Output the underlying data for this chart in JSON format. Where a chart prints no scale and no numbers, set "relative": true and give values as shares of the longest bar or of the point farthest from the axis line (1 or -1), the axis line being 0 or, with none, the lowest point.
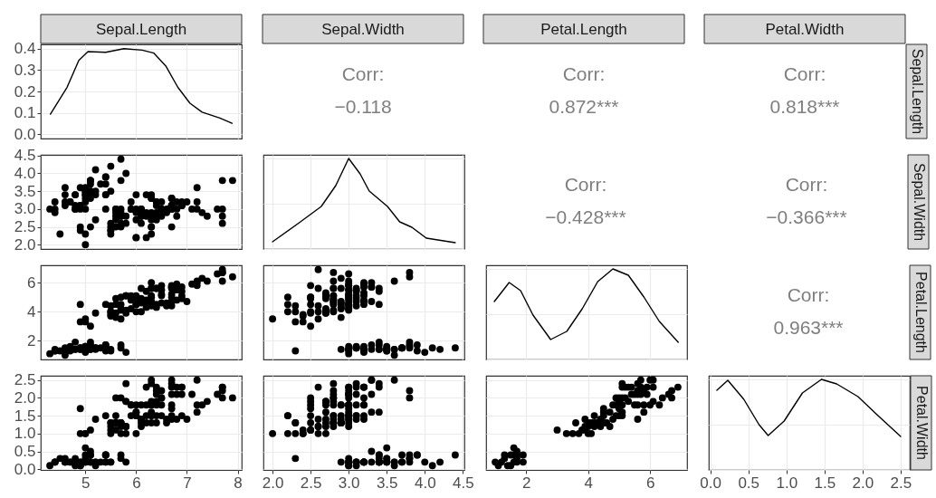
{
  "chart_data": [
    {
      "type": "line",
      "title": "Sepal.Length",
      "color": "#000000",
      "x": [
        4.31,
        4.64,
        4.87,
        5.05,
        5.4,
        5.76,
        6.12,
        6.35,
        6.59,
        6.82,
        7.06,
        7.3,
        7.65,
        7.89
      ],
      "values": [
        0.094,
        0.22,
        0.345,
        0.386,
        0.383,
        0.4,
        0.393,
        0.379,
        0.317,
        0.22,
        0.145,
        0.103,
        0.076,
        0.051
      ],
      "xlim": [
        4.12,
        8.08
      ],
      "xticks": [
        5,
        6,
        7,
        8
      ],
      "ylim": [
        -0.02,
        0.42
      ],
      "yticks": [
        {
          "value": 0,
          "label": "0.0"
        },
        0.1,
        0.2,
        0.3,
        0.4
      ],
      "grid": true,
      "tick_labels": "y"
    },
    {
      "type": "other",
      "title": "Sepal.Width",
      "annotations": [
        "Corr:",
        "−0.118"
      ]
    },
    {
      "type": "other",
      "title": "Petal.Length",
      "annotations": [
        "Corr:",
        "0.872***"
      ]
    },
    {
      "type": "other",
      "title": "Petal.Width",
      "ylabel": "Sepal.Length",
      "annotations": [
        "Corr:",
        "0.818***"
      ]
    },
    {
      "type": "scatter",
      "color": "#000000",
      "marker": "circle",
      "grid": true,
      "tick_labels": "y",
      "xlim": [
        4.12,
        8.08
      ],
      "xticks": [
        5,
        6,
        7,
        8
      ],
      "ylim": [
        1.88,
        4.52
      ],
      "yticks": [
        {
          "value": 2,
          "label": "2.0"
        },
        2.5,
        {
          "value": 3,
          "label": "3.0"
        },
        3.5,
        {
          "value": 4,
          "label": "4.0"
        },
        4.5
      ],
      "x": [
        5.1,
        4.9,
        4.7,
        4.6,
        5.0,
        5.4,
        4.6,
        5.0,
        4.4,
        4.9,
        5.4,
        4.8,
        4.8,
        4.3,
        5.8,
        5.7,
        5.4,
        5.1,
        5.7,
        5.1,
        5.4,
        5.1,
        4.6,
        5.1,
        4.8,
        5.0,
        5.0,
        5.2,
        5.2,
        4.7,
        4.8,
        5.4,
        5.2,
        5.5,
        4.9,
        5.0,
        5.5,
        4.9,
        4.4,
        5.1,
        5.0,
        4.5,
        4.4,
        5.0,
        5.1,
        4.8,
        5.1,
        4.6,
        5.3,
        5.0,
        7.0,
        6.4,
        6.9,
        5.5,
        6.5,
        5.7,
        6.3,
        4.9,
        6.6,
        5.2,
        5.0,
        5.9,
        6.0,
        6.1,
        5.6,
        6.7,
        5.6,
        6.2,
        5.6,
        5.9,
        6.1,
        6.3,
        6.1,
        6.4,
        6.6,
        6.8,
        6.7,
        6.0,
        5.7,
        5.5,
        5.5,
        6.0,
        5.4,
        6.0,
        6.7,
        6.3,
        5.6,
        5.5,
        5.5,
        6.1,
        5.8,
        5.0,
        5.6,
        5.7,
        5.7,
        6.2,
        5.1,
        5.7,
        6.3,
        7.1,
        6.3,
        6.5,
        7.6,
        4.9,
        7.3,
        6.7,
        7.2,
        6.5,
        6.4,
        6.8,
        5.7,
        5.8,
        6.4,
        6.5,
        7.7,
        7.7,
        6.0,
        6.9,
        5.6,
        7.7,
        6.3,
        6.7,
        7.2,
        6.2,
        6.1,
        6.4,
        7.2,
        7.4,
        7.9,
        6.3,
        6.1,
        7.7,
        6.3,
        6.4,
        6.0,
        6.9,
        6.7,
        6.9,
        6.8,
        6.7,
        6.7,
        6.3,
        6.5,
        6.2,
        5.9
      ],
      "values": [
        3.5,
        3.0,
        3.2,
        3.1,
        3.6,
        3.9,
        3.4,
        3.4,
        2.9,
        3.1,
        3.7,
        3.4,
        3.0,
        3.0,
        4.0,
        4.4,
        3.9,
        3.5,
        3.8,
        3.8,
        3.4,
        3.7,
        3.6,
        3.3,
        3.4,
        3.0,
        3.4,
        3.5,
        3.4,
        3.2,
        3.1,
        3.4,
        4.1,
        4.2,
        3.1,
        3.2,
        3.5,
        3.6,
        3.0,
        3.4,
        3.5,
        2.3,
        3.2,
        3.5,
        3.8,
        3.0,
        3.8,
        3.2,
        3.7,
        3.3,
        3.2,
        3.2,
        3.1,
        2.3,
        2.8,
        2.8,
        3.3,
        2.4,
        2.9,
        2.7,
        2.0,
        3.0,
        2.2,
        2.9,
        2.9,
        3.1,
        3.0,
        2.2,
        2.5,
        3.2,
        2.8,
        2.5,
        2.8,
        2.9,
        3.0,
        2.8,
        3.0,
        2.9,
        2.6,
        2.4,
        2.4,
        2.7,
        3.0,
        3.4,
        3.1,
        2.3,
        3.0,
        2.5,
        2.6,
        3.0,
        2.6,
        2.3,
        2.7,
        3.0,
        2.9,
        2.9,
        2.5,
        2.8,
        3.3,
        3.0,
        2.9,
        3.0,
        3.0,
        2.5,
        2.9,
        2.5,
        3.6,
        3.2,
        2.7,
        3.0,
        2.5,
        2.8,
        3.2,
        3.0,
        3.8,
        2.6,
        2.2,
        3.2,
        2.8,
        2.8,
        2.7,
        3.3,
        3.2,
        2.8,
        3.0,
        2.8,
        3.0,
        2.8,
        3.8,
        2.8,
        2.6,
        3.0,
        3.4,
        3.1,
        3.0,
        3.1,
        3.1,
        3.1,
        3.2,
        3.3,
        3.0,
        2.5,
        3.0,
        3.4,
        3.0
      ]
    },
    {
      "type": "line",
      "relative": true,
      "color": "#000000",
      "grid": true,
      "tick_labels": false,
      "xlim": [
        1.88,
        4.52
      ],
      "xticks": [
        2,
        2.5,
        3,
        3.5,
        4,
        4.5
      ],
      "x": [
        2.0,
        2.35,
        2.64,
        2.83,
        3.0,
        3.15,
        3.27,
        3.51,
        3.67,
        3.83,
        4.02,
        4.4
      ],
      "values": [
        0.08,
        0.29,
        0.47,
        0.7,
        1,
        0.83,
        0.64,
        0.47,
        0.3,
        0.24,
        0.12,
        0.07
      ]
    },
    {
      "type": "other",
      "annotations": [
        "Corr:",
        "−0.428***"
      ]
    },
    {
      "type": "other",
      "ylabel": "Sepal.Width",
      "annotations": [
        "Corr:",
        "−0.366***"
      ]
    },
    {
      "type": "scatter",
      "color": "#000000",
      "marker": "circle",
      "grid": true,
      "tick_labels": "y",
      "xlim": [
        4.12,
        8.08
      ],
      "xticks": [
        5,
        6,
        7,
        8
      ],
      "ylim": [
        0.705,
        7.195
      ],
      "yticks": [
        2,
        4,
        6
      ],
      "x": [
        5.1,
        4.9,
        4.7,
        4.6,
        5.4,
        4.6,
        4.4,
        4.9,
        4.8,
        4.3,
        5.8,
        5.7,
        5.4,
        5.1,
        5.7,
        5.4,
        4.6,
        5.1,
        4.8,
        5.0,
        5.0,
        5.2,
        5.2,
        4.7,
        5.2,
        5.5,
        4.9,
        5.0,
        5.5,
        4.9,
        4.4,
        4.5,
        4.4,
        5.0,
        5.1,
        4.8,
        5.3,
        7.0,
        6.4,
        6.9,
        5.5,
        6.5,
        5.7,
        6.3,
        4.9,
        6.6,
        5.2,
        5.0,
        5.9,
        6.0,
        5.6,
        6.7,
        5.6,
        5.8,
        6.2,
        5.6,
        5.9,
        6.1,
        6.4,
        6.6,
        6.8,
        6.7,
        6.0,
        5.7,
        5.5,
        5.5,
        5.8,
        6.0,
        5.4,
        6.0,
        6.7,
        6.3,
        5.5,
        5.5,
        6.1,
        5.0,
        5.7,
        6.2,
        5.1,
        5.7,
        6.3,
        5.8,
        7.1,
        6.3,
        6.5,
        7.6,
        4.9,
        7.3,
        6.7,
        7.2,
        6.5,
        6.8,
        5.7,
        5.8,
        6.5,
        7.7,
        7.7,
        6.9,
        5.6,
        7.7,
        6.7,
        7.2,
        6.2,
        6.1,
        6.4,
        7.2,
        7.4,
        7.9,
        6.4,
        6.3,
        6.1,
        7.7,
        6.3,
        6.0,
        6.9,
        6.7,
        6.9,
        5.8,
        6.8,
        6.7,
        6.7,
        6.3,
        6.5,
        6.2,
        5.9
      ],
      "values": [
        1.4,
        1.4,
        1.3,
        1.5,
        1.7,
        1.4,
        1.4,
        1.5,
        1.4,
        1.1,
        1.2,
        1.5,
        1.3,
        1.4,
        1.7,
        1.7,
        1.0,
        1.7,
        1.9,
        1.6,
        1.6,
        1.5,
        1.4,
        1.6,
        1.5,
        1.4,
        1.5,
        1.2,
        1.3,
        1.4,
        1.3,
        1.3,
        1.3,
        1.6,
        1.9,
        1.4,
        1.5,
        4.7,
        4.5,
        4.9,
        4.0,
        4.6,
        4.5,
        4.7,
        3.3,
        4.6,
        3.9,
        3.5,
        4.2,
        4.0,
        3.6,
        4.4,
        4.5,
        4.1,
        4.5,
        3.9,
        4.8,
        4.0,
        4.3,
        4.4,
        4.8,
        5.0,
        4.5,
        3.5,
        3.8,
        3.7,
        3.9,
        5.1,
        4.5,
        4.5,
        4.7,
        4.4,
        4.0,
        4.4,
        4.6,
        3.3,
        4.2,
        4.3,
        3.0,
        4.1,
        6.0,
        5.1,
        5.9,
        5.6,
        5.8,
        6.6,
        4.5,
        6.3,
        5.8,
        6.1,
        5.1,
        5.5,
        5.0,
        5.1,
        5.5,
        6.7,
        6.9,
        5.7,
        4.9,
        6.7,
        5.7,
        6.0,
        4.8,
        4.9,
        5.6,
        5.8,
        6.1,
        6.4,
        5.6,
        5.1,
        5.6,
        6.1,
        5.6,
        4.8,
        5.4,
        5.6,
        5.1,
        5.1,
        5.9,
        5.7,
        5.2,
        5.0,
        5.2,
        5.4,
        5.1
      ]
    },
    {
      "type": "scatter",
      "color": "#000000",
      "marker": "circle",
      "grid": true,
      "tick_labels": false,
      "xlim": [
        1.88,
        4.52
      ],
      "xticks": [
        2,
        2.5,
        3,
        3.5,
        4,
        4.5
      ],
      "ylim": [
        0.705,
        7.195
      ],
      "yticks": [
        2,
        4,
        6
      ],
      "x": [
        3.5,
        3.0,
        3.2,
        3.1,
        3.6,
        3.9,
        3.4,
        2.9,
        3.1,
        3.7,
        3.0,
        3.0,
        4.0,
        4.4,
        3.9,
        3.5,
        3.8,
        3.8,
        3.4,
        3.7,
        3.6,
        3.3,
        3.4,
        3.0,
        3.5,
        3.4,
        3.2,
        3.1,
        4.1,
        4.2,
        3.1,
        3.2,
        3.5,
        3.6,
        3.0,
        3.5,
        2.3,
        3.2,
        3.5,
        3.8,
        3.0,
        3.8,
        3.2,
        3.7,
        3.3,
        3.2,
        3.2,
        3.1,
        2.3,
        2.8,
        2.8,
        3.3,
        2.4,
        2.9,
        2.7,
        2.0,
        3.0,
        2.2,
        2.9,
        2.9,
        3.1,
        3.0,
        2.7,
        2.2,
        2.5,
        3.2,
        2.8,
        2.5,
        2.8,
        2.9,
        3.0,
        2.8,
        3.0,
        2.9,
        2.6,
        2.4,
        2.4,
        2.7,
        2.7,
        3.0,
        3.4,
        3.1,
        2.3,
        3.0,
        2.5,
        2.6,
        3.0,
        2.6,
        2.3,
        2.7,
        3.0,
        2.9,
        2.9,
        2.5,
        2.8,
        3.3,
        2.7,
        3.0,
        2.9,
        3.0,
        3.0,
        2.5,
        2.9,
        2.5,
        3.6,
        3.2,
        2.7,
        3.0,
        2.5,
        2.8,
        3.2,
        3.0,
        3.8,
        2.6,
        2.2,
        3.2,
        2.8,
        2.8,
        2.7,
        3.3,
        3.2,
        2.8,
        3.0,
        2.8,
        3.0,
        2.8,
        3.8,
        2.8,
        2.8,
        2.6,
        3.0,
        3.4,
        3.1,
        3.0,
        3.1,
        3.1,
        3.1,
        2.7,
        3.2,
        3.3,
        3.0,
        2.5,
        3.0,
        3.4,
        3.0
      ],
      "values": [
        1.4,
        1.4,
        1.3,
        1.5,
        1.4,
        1.7,
        1.4,
        1.4,
        1.5,
        1.5,
        1.4,
        1.1,
        1.2,
        1.5,
        1.3,
        1.4,
        1.7,
        1.5,
        1.7,
        1.5,
        1.0,
        1.7,
        1.9,
        1.6,
        1.5,
        1.4,
        1.6,
        1.6,
        1.5,
        1.4,
        1.5,
        1.2,
        1.3,
        1.4,
        1.3,
        1.3,
        1.3,
        1.3,
        1.6,
        1.9,
        1.4,
        1.6,
        1.4,
        1.5,
        1.4,
        4.7,
        4.5,
        4.9,
        4.0,
        4.6,
        4.5,
        4.7,
        3.3,
        4.6,
        3.9,
        3.5,
        4.2,
        4.0,
        4.7,
        3.6,
        4.4,
        4.5,
        4.1,
        4.5,
        3.9,
        4.8,
        4.0,
        4.9,
        4.7,
        4.3,
        4.4,
        4.8,
        5.0,
        4.5,
        3.5,
        3.8,
        3.7,
        3.9,
        5.1,
        4.5,
        4.5,
        4.7,
        4.4,
        4.1,
        4.0,
        4.4,
        4.6,
        4.0,
        3.3,
        4.2,
        4.2,
        4.2,
        4.3,
        3.0,
        4.1,
        6.0,
        5.1,
        5.9,
        5.6,
        5.8,
        6.6,
        4.5,
        6.3,
        5.8,
        6.1,
        5.1,
        5.3,
        5.5,
        5.0,
        5.1,
        5.3,
        5.5,
        6.7,
        6.9,
        5.0,
        5.7,
        4.9,
        6.7,
        4.9,
        5.7,
        6.0,
        4.8,
        4.9,
        5.6,
        5.8,
        6.1,
        6.4,
        5.6,
        5.1,
        5.6,
        6.1,
        5.6,
        5.5,
        4.8,
        5.4,
        5.6,
        5.1,
        5.1,
        5.9,
        5.7,
        5.2,
        5.0,
        5.2,
        5.4,
        5.1
      ]
    },
    {
      "type": "line",
      "relative": true,
      "color": "#000000",
      "grid": true,
      "tick_labels": false,
      "xlim": [
        0.705,
        7.195
      ],
      "xticks": [
        2,
        4,
        6
      ],
      "x": [
        0.97,
        1.45,
        1.82,
        2.22,
        2.79,
        3.31,
        3.81,
        4.31,
        4.8,
        5.3,
        5.8,
        6.3,
        6.91
      ],
      "values": [
        0.64,
        0.85,
        0.76,
        0.49,
        0.22,
        0.31,
        0.56,
        0.86,
        1,
        0.93,
        0.69,
        0.42,
        0.19
      ]
    },
    {
      "type": "other",
      "ylabel": "Petal.Length",
      "annotations": [
        "Corr:",
        "0.963***"
      ]
    },
    {
      "type": "scatter",
      "color": "#000000",
      "marker": "circle",
      "grid": true,
      "xlim": [
        4.12,
        8.08
      ],
      "xticks": [
        5,
        6,
        7,
        8
      ],
      "ylim": [
        -0.02,
        2.62
      ],
      "yticks": [
        {
          "value": 0,
          "label": "0.0"
        },
        0.5,
        {
          "value": 1,
          "label": "1.0"
        },
        1.5,
        {
          "value": 2,
          "label": "2.0"
        },
        2.5
      ],
      "x": [
        5.1,
        4.9,
        4.7,
        4.6,
        5.4,
        4.6,
        4.4,
        4.9,
        5.4,
        4.8,
        4.8,
        4.3,
        5.8,
        5.7,
        5.4,
        5.7,
        5.4,
        5.1,
        4.6,
        5.1,
        5.0,
        5.0,
        5.2,
        5.2,
        4.7,
        5.4,
        5.2,
        5.5,
        4.9,
        5.0,
        5.5,
        4.9,
        4.4,
        5.1,
        5.0,
        4.5,
        4.4,
        5.0,
        5.1,
        4.8,
        5.1,
        4.6,
        5.3,
        5.0,
        7.0,
        6.4,
        6.9,
        5.5,
        6.5,
        5.7,
        6.3,
        4.9,
        6.6,
        5.2,
        5.0,
        5.9,
        6.0,
        6.1,
        5.6,
        6.7,
        5.6,
        5.8,
        6.2,
        5.6,
        5.9,
        6.1,
        6.3,
        6.1,
        6.4,
        6.6,
        6.8,
        6.7,
        6.0,
        5.7,
        5.5,
        5.5,
        5.8,
        6.0,
        5.4,
        6.0,
        6.7,
        6.3,
        5.6,
        5.5,
        5.5,
        6.1,
        5.8,
        5.0,
        5.6,
        5.7,
        5.7,
        6.2,
        5.1,
        5.7,
        6.3,
        5.8,
        7.1,
        6.3,
        6.5,
        7.6,
        4.9,
        7.3,
        6.7,
        7.2,
        6.5,
        6.4,
        6.8,
        5.7,
        5.8,
        6.4,
        6.5,
        7.7,
        7.7,
        6.0,
        6.9,
        5.6,
        7.7,
        6.3,
        6.7,
        7.2,
        6.2,
        6.1,
        6.4,
        7.2,
        7.4,
        7.9,
        6.4,
        6.3,
        7.7,
        6.3,
        6.4,
        6.0,
        6.9,
        6.7,
        6.9,
        5.8,
        6.8,
        6.7,
        6.7,
        6.3,
        6.5,
        6.2,
        5.9
      ],
      "values": [
        0.2,
        0.2,
        0.2,
        0.2,
        0.4,
        0.3,
        0.2,
        0.1,
        0.2,
        0.2,
        0.1,
        0.1,
        0.2,
        0.4,
        0.4,
        0.3,
        0.2,
        0.4,
        0.2,
        0.5,
        0.2,
        0.4,
        0.2,
        0.2,
        0.2,
        0.4,
        0.1,
        0.2,
        0.2,
        0.2,
        0.2,
        0.1,
        0.2,
        0.2,
        0.3,
        0.3,
        0.2,
        0.6,
        0.4,
        0.3,
        0.2,
        0.2,
        0.2,
        0.2,
        1.4,
        1.5,
        1.5,
        1.3,
        1.5,
        1.3,
        1.6,
        1.0,
        1.3,
        1.4,
        1.0,
        1.5,
        1.0,
        1.4,
        1.3,
        1.4,
        1.5,
        1.0,
        1.5,
        1.1,
        1.8,
        1.3,
        1.5,
        1.2,
        1.3,
        1.4,
        1.4,
        1.7,
        1.5,
        1.0,
        1.1,
        1.0,
        1.2,
        1.6,
        1.5,
        1.6,
        1.5,
        1.3,
        1.3,
        1.3,
        1.2,
        1.4,
        1.2,
        1.0,
        1.3,
        1.2,
        1.3,
        1.3,
        1.1,
        1.3,
        2.5,
        1.9,
        2.1,
        1.8,
        2.2,
        2.1,
        1.7,
        1.8,
        1.8,
        2.5,
        2.0,
        1.9,
        2.1,
        2.0,
        2.4,
        2.3,
        1.8,
        2.2,
        2.3,
        1.5,
        2.3,
        2.0,
        2.0,
        1.8,
        2.1,
        1.8,
        1.8,
        1.8,
        2.1,
        1.6,
        1.9,
        2.0,
        2.2,
        1.5,
        2.3,
        2.4,
        1.8,
        1.8,
        2.1,
        2.4,
        2.3,
        1.9,
        2.3,
        2.5,
        2.3,
        1.9,
        2.0,
        2.3,
        1.8
      ]
    },
    {
      "type": "scatter",
      "color": "#000000",
      "marker": "circle",
      "grid": true,
      "tick_labels": "x",
      "xlim": [
        1.88,
        4.52
      ],
      "xticks": [
        {
          "value": 2,
          "label": "2.0"
        },
        2.5,
        {
          "value": 3,
          "label": "3.0"
        },
        3.5,
        {
          "value": 4,
          "label": "4.0"
        },
        4.5
      ],
      "ylim": [
        -0.02,
        2.62
      ],
      "yticks": [
        0,
        0.5,
        1,
        1.5,
        2,
        2.5
      ],
      "x": [
        3.5,
        3.0,
        3.2,
        3.1,
        3.6,
        3.9,
        3.4,
        3.4,
        2.9,
        3.1,
        3.7,
        3.4,
        3.0,
        3.0,
        4.0,
        4.4,
        3.9,
        3.5,
        3.8,
        3.8,
        3.4,
        3.7,
        3.6,
        3.3,
        3.4,
        3.0,
        3.4,
        3.5,
        3.4,
        3.2,
        3.1,
        3.4,
        4.1,
        4.2,
        3.1,
        3.2,
        3.5,
        3.6,
        3.0,
        3.4,
        3.5,
        2.3,
        3.2,
        3.5,
        3.8,
        3.0,
        3.8,
        3.2,
        3.7,
        3.3,
        3.2,
        3.2,
        3.1,
        2.3,
        2.8,
        2.8,
        3.3,
        2.4,
        2.9,
        2.7,
        2.0,
        3.0,
        2.2,
        2.9,
        2.9,
        3.1,
        3.0,
        2.7,
        2.2,
        2.5,
        3.2,
        2.8,
        2.5,
        2.8,
        2.9,
        3.0,
        2.8,
        3.0,
        2.9,
        2.6,
        2.4,
        2.4,
        2.7,
        2.7,
        3.0,
        3.4,
        3.1,
        2.3,
        3.0,
        2.5,
        2.6,
        3.0,
        2.6,
        2.3,
        2.7,
        3.0,
        2.9,
        2.9,
        2.5,
        2.8,
        3.3,
        2.7,
        3.0,
        2.9,
        3.0,
        3.0,
        2.5,
        2.9,
        2.5,
        3.6,
        3.2,
        2.7,
        3.0,
        2.5,
        2.8,
        3.2,
        3.0,
        3.8,
        2.6,
        2.2,
        3.2,
        2.8,
        2.8,
        2.7,
        3.3,
        3.2,
        2.8,
        3.0,
        2.8,
        3.0,
        2.8,
        3.8,
        2.8,
        2.8,
        2.6,
        3.0,
        3.4,
        3.1,
        3.0,
        3.1,
        3.1,
        3.1,
        2.7,
        3.2,
        3.3,
        3.0,
        2.5,
        3.0,
        3.4,
        3.0
      ],
      "values": [
        0.2,
        0.2,
        0.2,
        0.2,
        0.2,
        0.4,
        0.3,
        0.2,
        0.2,
        0.1,
        0.2,
        0.2,
        0.1,
        0.1,
        0.2,
        0.4,
        0.4,
        0.3,
        0.3,
        0.3,
        0.2,
        0.4,
        0.2,
        0.5,
        0.2,
        0.2,
        0.4,
        0.2,
        0.2,
        0.2,
        0.2,
        0.4,
        0.1,
        0.2,
        0.2,
        0.2,
        0.2,
        0.1,
        0.2,
        0.2,
        0.3,
        0.3,
        0.2,
        0.6,
        0.4,
        0.3,
        0.2,
        0.2,
        0.2,
        0.2,
        1.4,
        1.5,
        1.5,
        1.3,
        1.5,
        1.3,
        1.6,
        1.0,
        1.3,
        1.4,
        1.0,
        1.5,
        1.0,
        1.4,
        1.3,
        1.4,
        1.5,
        1.0,
        1.5,
        1.1,
        1.8,
        1.3,
        1.5,
        1.2,
        1.3,
        1.4,
        1.4,
        1.7,
        1.5,
        1.0,
        1.1,
        1.0,
        1.2,
        1.6,
        1.5,
        1.6,
        1.5,
        1.3,
        1.3,
        1.3,
        1.2,
        1.4,
        1.2,
        1.0,
        1.3,
        1.2,
        1.3,
        1.3,
        1.1,
        1.3,
        2.5,
        1.9,
        2.1,
        1.8,
        2.2,
        2.1,
        1.7,
        1.8,
        1.8,
        2.5,
        2.0,
        1.9,
        2.1,
        2.0,
        2.4,
        2.3,
        1.8,
        2.2,
        2.3,
        1.5,
        2.3,
        2.0,
        2.0,
        1.8,
        2.1,
        1.8,
        1.8,
        1.8,
        2.1,
        1.6,
        1.9,
        2.0,
        2.2,
        1.5,
        1.4,
        2.3,
        2.4,
        1.8,
        1.8,
        2.1,
        2.4,
        2.3,
        1.9,
        2.3,
        2.5,
        2.3,
        1.9,
        2.0,
        2.3,
        1.8
      ]
    },
    {
      "type": "scatter",
      "color": "#000000",
      "marker": "circle",
      "grid": true,
      "tick_labels": "x",
      "xlim": [
        0.705,
        7.195
      ],
      "xticks": [
        2,
        4,
        6
      ],
      "ylim": [
        -0.02,
        2.62
      ],
      "yticks": [
        0,
        0.5,
        1,
        1.5,
        2,
        2.5
      ],
      "x": [
        1.0,
        1.1,
        1.2,
        1.3,
        1.3,
        1.4,
        1.5,
        1.5,
        1.6,
        1.6,
        1.6,
        1.7,
        1.7,
        1.7,
        1.7,
        1.9,
        1.9,
        4.5,
        4.9,
        4.0,
        4.5,
        4.7,
        3.3,
        4.6,
        3.9,
        3.5,
        4.2,
        4.0,
        3.6,
        4.4,
        4.1,
        3.9,
        4.8,
        4.7,
        4.3,
        4.8,
        5.0,
        3.8,
        3.7,
        3.9,
        5.1,
        4.5,
        4.1,
        4.4,
        4.0,
        4.2,
        4.2,
        3.0,
        6.0,
        5.9,
        5.6,
        5.8,
        6.6,
        4.5,
        6.3,
        5.8,
        6.1,
        5.1,
        5.3,
        5.5,
        5.0,
        5.1,
        5.3,
        5.5,
        6.7,
        6.9,
        5.0,
        5.7,
        4.9,
        6.7,
        4.9,
        5.7,
        6.0,
        5.6,
        5.8,
        6.1,
        6.4,
        5.6,
        5.1,
        5.6,
        6.1,
        5.6,
        5.4,
        5.1,
        5.9,
        5.7,
        5.2,
        5.0,
        5.2,
        5.4,
        5.1
      ],
      "values": [
        0.2,
        0.1,
        0.2,
        0.3,
        0.4,
        0.1,
        0.1,
        0.4,
        0.2,
        0.4,
        0.6,
        0.2,
        0.3,
        0.4,
        0.5,
        0.2,
        0.4,
        1.5,
        1.5,
        1.3,
        1.3,
        1.6,
        1.0,
        1.3,
        1.4,
        1.0,
        1.5,
        1.0,
        1.3,
        1.4,
        1.0,
        1.1,
        1.8,
        1.2,
        1.3,
        1.4,
        1.7,
        1.1,
        1.0,
        1.2,
        1.6,
        1.6,
        1.3,
        1.2,
        1.2,
        1.3,
        1.2,
        1.1,
        2.5,
        2.1,
        1.8,
        2.2,
        2.1,
        1.7,
        1.8,
        1.8,
        2.5,
        2.0,
        1.9,
        2.1,
        2.0,
        2.4,
        2.3,
        1.8,
        2.2,
        2.3,
        1.5,
        2.3,
        2.0,
        2.0,
        1.8,
        2.1,
        1.8,
        2.1,
        1.6,
        1.9,
        2.0,
        2.2,
        1.5,
        1.4,
        2.3,
        2.4,
        2.1,
        2.3,
        2.3,
        2.5,
        2.3,
        1.9,
        2.0,
        2.3,
        1.8
      ]
    },
    {
      "type": "line",
      "relative": true,
      "color": "#000000",
      "grid": true,
      "tick_labels": "x",
      "ylabel": "Petal.Width",
      "xlim": [
        -0.02,
        2.62
      ],
      "xticks": [
        {
          "value": 0,
          "label": "0.0"
        },
        0.5,
        {
          "value": 1,
          "label": "1.0"
        },
        1.5,
        {
          "value": 2,
          "label": "2.0"
        },
        2.5
      ],
      "x": [
        0.086,
        0.23,
        0.44,
        0.64,
        0.76,
        0.97,
        1.21,
        1.46,
        1.66,
        1.94,
        2.19,
        2.5
      ],
      "values": [
        0.88,
        0.99,
        0.78,
        0.5,
        0.38,
        0.54,
        0.85,
        1,
        0.95,
        0.81,
        0.61,
        0.37
      ]
    }
  ]
}
